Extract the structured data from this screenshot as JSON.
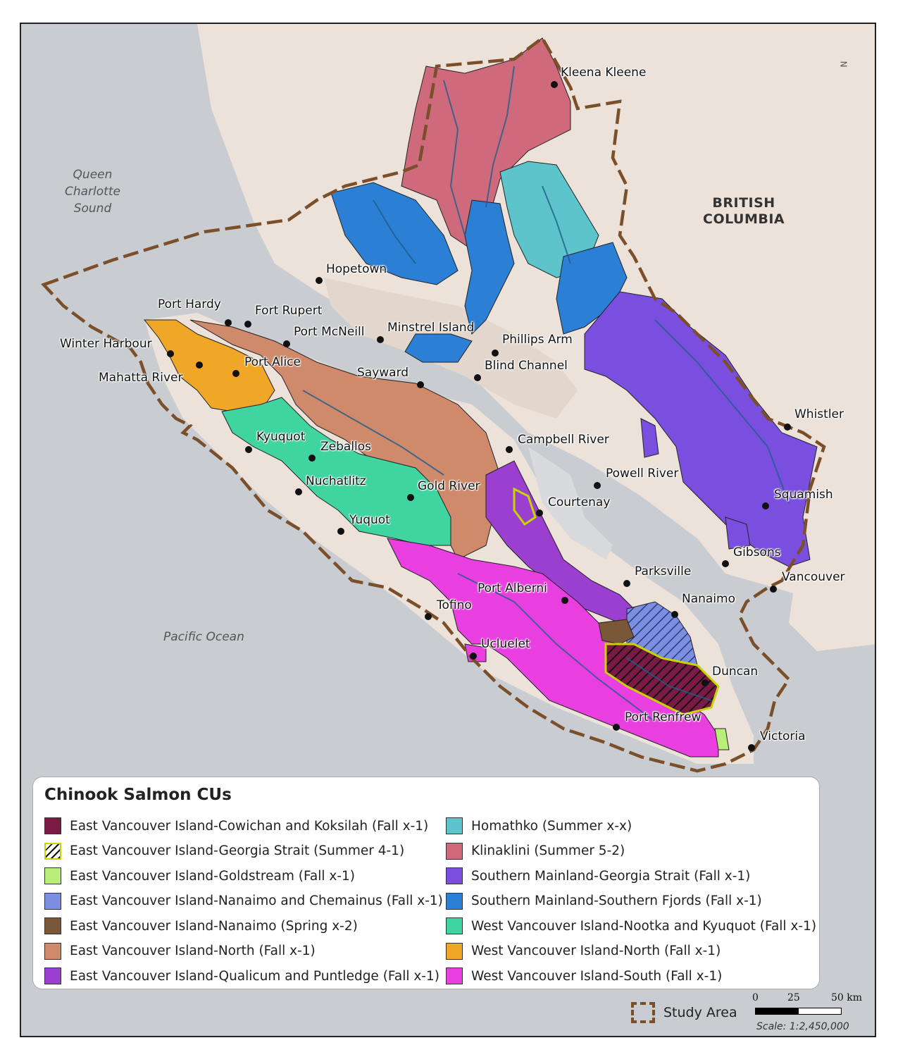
{
  "map": {
    "region_label": "BRITISH\nCOLUMBIA",
    "water_labels": {
      "queen_charlotte": "Queen\nCharlotte\nSound",
      "pacific": "Pacific Ocean"
    },
    "places": {
      "kleena_kleene": "Kleena Kleene",
      "hopetown": "Hopetown",
      "port_hardy": "Port Hardy",
      "fort_rupert": "Fort Rupert",
      "port_mcneill": "Port McNeill",
      "minstrel_island": "Minstrel Island",
      "phillips_arm": "Phillips Arm",
      "winter_harbour": "Winter Harbour",
      "port_alice": "Port Alice",
      "mahatta_river": "Mahatta River",
      "sayward": "Sayward",
      "blind_channel": "Blind Channel",
      "whistler": "Whistler",
      "kyuquot": "Kyuquot",
      "zeballos": "Zeballos",
      "campbell_river": "Campbell River",
      "powell_river": "Powell River",
      "nuchatlitz": "Nuchatlitz",
      "gold_river": "Gold River",
      "courtenay": "Courtenay",
      "squamish": "Squamish",
      "yuquot": "Yuquot",
      "gibsons": "Gibsons",
      "parksville": "Parksville",
      "vancouver": "Vancouver",
      "port_alberni": "Port Alberni",
      "tofino": "Tofino",
      "nanaimo": "Nanaimo",
      "ucluelet": "Ucluelet",
      "duncan": "Duncan",
      "port_renfrew": "Port Renfrew",
      "victoria": "Victoria"
    }
  },
  "legend": {
    "title": "Chinook Salmon CUs",
    "items": [
      {
        "label": "East Vancouver Island-Cowichan and Koksilah (Fall x-1)",
        "color": "#7a1a45"
      },
      {
        "label": "East Vancouver Island-Georgia Strait (Summer 4-1)",
        "color": "hatched"
      },
      {
        "label": "East Vancouver Island-Goldstream (Fall x-1)",
        "color": "#b9ee7a"
      },
      {
        "label": "East Vancouver Island-Nanaimo and Chemainus (Fall x-1)",
        "color": "#7b8ee0"
      },
      {
        "label": "East Vancouver Island-Nanaimo (Spring x-2)",
        "color": "#7a5738"
      },
      {
        "label": "East Vancouver Island-North (Fall x-1)",
        "color": "#cf8a6c"
      },
      {
        "label": "East Vancouver Island-Qualicum and Puntledge (Fall x-1)",
        "color": "#9a3fd0"
      },
      {
        "label": "Homathko (Summer x-x)",
        "color": "#5ec4cc"
      },
      {
        "label": "Klinaklini (Summer 5-2)",
        "color": "#cf6a7c"
      },
      {
        "label": "Southern Mainland-Georgia Strait (Fall x-1)",
        "color": "#7a4fe0"
      },
      {
        "label": "Southern Mainland-Southern Fjords (Fall x-1)",
        "color": "#2b7fd4"
      },
      {
        "label": "West Vancouver Island-Nootka and Kyuquot (Fall x-1)",
        "color": "#3fd4a0"
      },
      {
        "label": "West Vancouver Island-North (Fall x-1)",
        "color": "#f0a626"
      },
      {
        "label": "West Vancouver Island-South (Fall x-1)",
        "color": "#e93fe0"
      }
    ]
  },
  "study_area": "Study Area",
  "scale": {
    "ticks": [
      "0",
      "25",
      "50 km"
    ],
    "text": "Scale: 1:2,450,000"
  },
  "north_label": "N",
  "colors": {
    "land": "#ece2da",
    "water": "#c9ccd0",
    "study_boundary": "#7a4f2a",
    "rivers": "#1f5e8a"
  }
}
